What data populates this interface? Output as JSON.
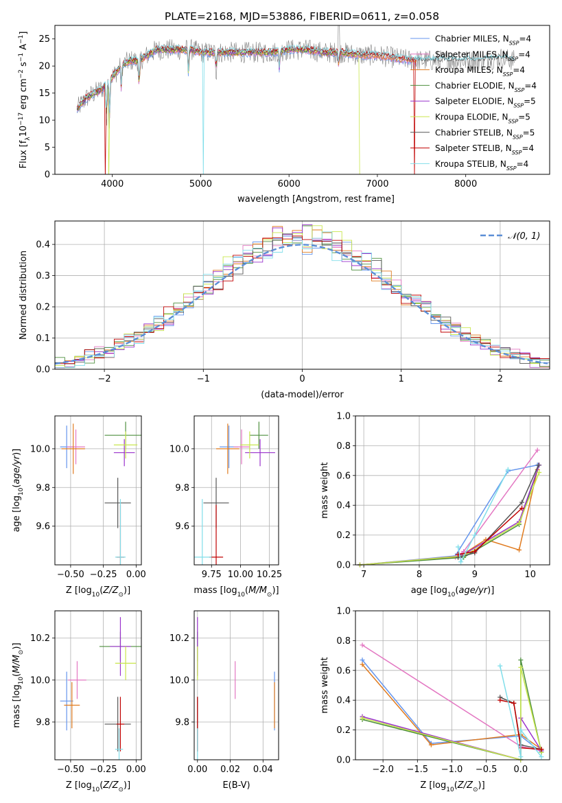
{
  "figure_title": "PLATE=2168, MJD=53886, FIBERID=0611, z=0.058",
  "colors": {
    "Chabrier MILES": "#6495ED",
    "Salpeter MILES": "#E377C2",
    "Kroupa MILES": "#E07B1F",
    "Chabrier ELODIE": "#4E8F3E",
    "Salpeter ELODIE": "#9932CC",
    "Kroupa ELODIE": "#C8E64B",
    "Chabrier STELIB": "#555555",
    "Salpeter STELIB": "#C00000",
    "Kroupa STELIB": "#80DEEA"
  },
  "chart_data": [
    {
      "id": "spectrum",
      "type": "line",
      "xlabel": "wavelength [Angstrom, rest frame]",
      "ylabel": "Flux [f_λ10^{-17} erg cm^{-2} s^{-1} A^{-1}]",
      "xlim": [
        3350,
        8950
      ],
      "ylim": [
        0,
        27.5
      ],
      "xticks": [
        4000,
        5000,
        6000,
        7000,
        8000
      ],
      "yticks": [
        0,
        5,
        10,
        15,
        20,
        25
      ],
      "legend_position": "top-right",
      "data_color": "#808080",
      "data_label": "",
      "continuum": {
        "x": [
          3600,
          3700,
          3800,
          3900,
          4000,
          4100,
          4200,
          4300,
          4400,
          4500,
          4600,
          4700,
          4800,
          4900,
          5000,
          5200,
          5400,
          5600,
          5800,
          6000,
          6200,
          6400,
          6600,
          6800,
          7000,
          7200,
          7400,
          7600,
          7800,
          8000,
          8200,
          8400,
          8550
        ],
        "y": [
          12,
          14,
          15,
          16,
          18,
          20,
          21,
          21,
          22,
          23,
          23,
          23,
          23,
          23,
          22.5,
          22.5,
          22.5,
          22.5,
          22.5,
          23,
          23,
          22.5,
          22.5,
          22,
          22,
          21.5,
          21,
          21,
          21,
          21,
          21,
          21.5,
          21
        ]
      },
      "absorption_lines": [
        {
          "x": 3934,
          "depth": 8
        },
        {
          "x": 3968,
          "depth": 8
        },
        {
          "x": 4102,
          "depth": 5
        },
        {
          "x": 4304,
          "depth": 6
        },
        {
          "x": 4861,
          "depth": 5
        },
        {
          "x": 5175,
          "depth": 4
        },
        {
          "x": 5892,
          "depth": 4
        },
        {
          "x": 6563,
          "depth": 3
        }
      ],
      "model_gaps": [
        {
          "x": 3920,
          "model": "Salpeter STELIB"
        },
        {
          "x": 3960,
          "model": "Kroupa ELODIE"
        },
        {
          "x": 5030,
          "model": "Kroupa STELIB"
        },
        {
          "x": 6800,
          "model": "Kroupa ELODIE"
        },
        {
          "x": 7420,
          "model": "Salpeter STELIB"
        }
      ],
      "series": [
        {
          "name": "Chabrier MILES, N_SSP=4",
          "model": "Chabrier MILES",
          "xmin": 3600,
          "xmax": 7440
        },
        {
          "name": "Salpeter MILES, N_SSP=4",
          "model": "Salpeter MILES",
          "xmin": 3600,
          "xmax": 7440
        },
        {
          "name": "Kroupa MILES, N_SSP=4",
          "model": "Kroupa MILES",
          "xmin": 3600,
          "xmax": 7440
        },
        {
          "name": "Chabrier ELODIE, N_SSP=4",
          "model": "Chabrier ELODIE",
          "xmin": 3600,
          "xmax": 6800
        },
        {
          "name": "Salpeter ELODIE, N_SSP=5",
          "model": "Salpeter ELODIE",
          "xmin": 3600,
          "xmax": 6800
        },
        {
          "name": "Kroupa ELODIE, N_SSP=5",
          "model": "Kroupa ELODIE",
          "xmin": 3600,
          "xmax": 6800
        },
        {
          "name": "Chabrier STELIB, N_SSP=5",
          "model": "Chabrier STELIB",
          "xmin": 3600,
          "xmax": 8550
        },
        {
          "name": "Salpeter STELIB, N_SSP=4",
          "model": "Salpeter STELIB",
          "xmin": 3600,
          "xmax": 7440
        },
        {
          "name": "Kroupa STELIB, N_SSP=4",
          "model": "Kroupa STELIB",
          "xmin": 3600,
          "xmax": 8550
        }
      ]
    },
    {
      "id": "residuals",
      "type": "histogram",
      "xlabel": "(data-model)/error",
      "ylabel": "Normed distribution",
      "xlim": [
        -2.5,
        2.5
      ],
      "ylim": [
        0,
        0.475
      ],
      "xticks": [
        -2,
        -1,
        0,
        1,
        2
      ],
      "yticks": [
        0.0,
        0.1,
        0.2,
        0.3,
        0.4
      ],
      "grid": true,
      "bin_width": 0.1,
      "legend": "𝒩(0, 1)",
      "legend_position": "top-right",
      "reference_curve": {
        "type": "normal",
        "mu": 0,
        "sigma": 1,
        "color": "#5B8ED6"
      },
      "noise_amplitude": 0.045,
      "series_models": [
        "Chabrier MILES",
        "Salpeter MILES",
        "Kroupa MILES",
        "Chabrier ELODIE",
        "Salpeter ELODIE",
        "Kroupa ELODIE",
        "Chabrier STELIB",
        "Salpeter STELIB",
        "Kroupa STELIB"
      ]
    },
    {
      "id": "age-vs-Z",
      "type": "errorbar",
      "xlabel": "Z [log₁₀(Z/Z⊙)]",
      "ylabel": "age  [log₁₀(age/yr)]",
      "xlim": [
        -0.62,
        0.04
      ],
      "ylim": [
        9.4,
        10.17
      ],
      "xticks": [
        "-0.50",
        "-0.25",
        "0.00"
      ],
      "yticks": [
        "9.6",
        "9.8",
        "10.0"
      ],
      "grid": true,
      "points": [
        {
          "model": "Chabrier MILES",
          "x": -0.53,
          "xerr": 0.05,
          "y": 10.01,
          "yerr": 0.11
        },
        {
          "model": "Salpeter MILES",
          "x": -0.46,
          "xerr": 0.07,
          "y": 10.01,
          "yerr": 0.09
        },
        {
          "model": "Kroupa MILES",
          "x": -0.48,
          "xerr": 0.09,
          "y": 10.0,
          "yerr": 0.13
        },
        {
          "model": "Chabrier ELODIE",
          "x": -0.08,
          "xerr": 0.16,
          "y": 10.07,
          "yerr": 0.07
        },
        {
          "model": "Salpeter ELODIE",
          "x": -0.09,
          "xerr": 0.08,
          "y": 9.98,
          "yerr": 0.07
        },
        {
          "model": "Kroupa ELODIE",
          "x": -0.08,
          "xerr": 0.09,
          "y": 10.02,
          "yerr": 0.07
        },
        {
          "model": "Chabrier STELIB",
          "x": -0.14,
          "xerr": 0.1,
          "y": 9.72,
          "yerr": 0.13
        },
        {
          "model": "Salpeter STELIB",
          "x": -0.12,
          "xerr": 0.03,
          "y": 9.44,
          "yerr": 0.27
        },
        {
          "model": "Kroupa STELIB",
          "x": -0.12,
          "xerr": 0.04,
          "y": 9.44,
          "yerr": 0.3
        }
      ]
    },
    {
      "id": "age-vs-mass",
      "type": "errorbar",
      "xlabel": "mass [log₁₀(M/M⊙)]",
      "ylabel": "",
      "xlim": [
        9.6,
        10.33
      ],
      "ylim": [
        9.4,
        10.17
      ],
      "xticks": [
        "9.75",
        "10.00",
        "10.25"
      ],
      "yticks": [
        "9.6",
        "9.8",
        "10.0"
      ],
      "grid": true,
      "points": [
        {
          "model": "Chabrier MILES",
          "x": 9.9,
          "xerr": 0.08,
          "y": 10.01,
          "yerr": 0.11
        },
        {
          "model": "Salpeter MILES",
          "x": 10.01,
          "xerr": 0.07,
          "y": 10.01,
          "yerr": 0.09
        },
        {
          "model": "Kroupa MILES",
          "x": 9.89,
          "xerr": 0.1,
          "y": 10.0,
          "yerr": 0.13
        },
        {
          "model": "Chabrier ELODIE",
          "x": 10.16,
          "xerr": 0.08,
          "y": 10.07,
          "yerr": 0.07
        },
        {
          "model": "Salpeter ELODIE",
          "x": 10.17,
          "xerr": 0.13,
          "y": 9.98,
          "yerr": 0.07
        },
        {
          "model": "Kroupa ELODIE",
          "x": 10.08,
          "xerr": 0.08,
          "y": 10.02,
          "yerr": 0.07
        },
        {
          "model": "Chabrier STELIB",
          "x": 9.79,
          "xerr": 0.11,
          "y": 9.72,
          "yerr": 0.13
        },
        {
          "model": "Salpeter STELIB",
          "x": 9.79,
          "xerr": 0.06,
          "y": 9.44,
          "yerr": 0.27
        },
        {
          "model": "Kroupa STELIB",
          "x": 9.67,
          "xerr": 0.08,
          "y": 9.44,
          "yerr": 0.3
        }
      ]
    },
    {
      "id": "massweight-vs-age",
      "type": "line",
      "xlabel": "age  [log₁₀(age/yr)]",
      "ylabel": "mass weight",
      "xlim": [
        6.85,
        10.35
      ],
      "ylim": [
        0,
        1.0
      ],
      "xticks": [
        "7",
        "8",
        "9",
        "10"
      ],
      "yticks": [
        "0.0",
        "0.2",
        "0.4",
        "0.6",
        "0.8",
        "1.0"
      ],
      "grid": true,
      "series": [
        {
          "model": "Chabrier MILES",
          "x": [
            6.93,
            8.65,
            9.6,
            10.13
          ],
          "y": [
            0.0,
            0.06,
            0.63,
            0.67
          ]
        },
        {
          "model": "Salpeter MILES",
          "x": [
            6.93,
            8.65,
            8.8,
            10.13
          ],
          "y": [
            0.0,
            0.05,
            0.09,
            0.77
          ]
        },
        {
          "model": "Kroupa MILES",
          "x": [
            6.93,
            8.7,
            9.2,
            9.8,
            10.13
          ],
          "y": [
            0.0,
            0.05,
            0.17,
            0.1,
            0.64
          ]
        },
        {
          "model": "Chabrier ELODIE",
          "x": [
            6.93,
            8.8,
            9.8,
            10.16
          ],
          "y": [
            0.0,
            0.05,
            0.27,
            0.67
          ]
        },
        {
          "model": "Salpeter ELODIE",
          "x": [
            6.93,
            8.75,
            9.8,
            10.16
          ],
          "y": [
            0.0,
            0.06,
            0.29,
            0.67
          ]
        },
        {
          "model": "Kroupa ELODIE",
          "x": [
            6.93,
            8.8,
            9.8,
            10.16
          ],
          "y": [
            0.0,
            0.06,
            0.28,
            0.62
          ]
        },
        {
          "model": "Chabrier STELIB",
          "x": [
            8.7,
            9.0,
            9.85,
            10.15
          ],
          "y": [
            0.05,
            0.08,
            0.42,
            0.67
          ]
        },
        {
          "model": "Salpeter STELIB",
          "x": [
            8.7,
            9.0,
            9.85
          ],
          "y": [
            0.07,
            0.09,
            0.38
          ]
        },
        {
          "model": "Kroupa STELIB",
          "x": [
            8.7,
            8.75,
            9.0,
            9.6
          ],
          "y": [
            0.12,
            0.02,
            0.2,
            0.64
          ]
        }
      ]
    },
    {
      "id": "mass-vs-Z",
      "type": "errorbar",
      "xlabel": "Z [log₁₀(Z/Z⊙)]",
      "ylabel": "mass [log₁₀(M/M⊙)]",
      "xlim": [
        -0.62,
        0.04
      ],
      "ylim": [
        9.62,
        10.33
      ],
      "xticks": [
        "-0.50",
        "-0.25",
        "0.00"
      ],
      "yticks": [
        "9.8",
        "10.0",
        "10.2"
      ],
      "grid": true,
      "points": [
        {
          "model": "Chabrier MILES",
          "x": -0.53,
          "xerr": 0.05,
          "y": 9.9,
          "yerr": 0.14
        },
        {
          "model": "Salpeter MILES",
          "x": -0.45,
          "xerr": 0.07,
          "y": 10.0,
          "yerr": 0.09
        },
        {
          "model": "Kroupa MILES",
          "x": -0.49,
          "xerr": 0.06,
          "y": 9.88,
          "yerr": 0.11
        },
        {
          "model": "Chabrier ELODIE",
          "x": -0.12,
          "xerr": 0.16,
          "y": 10.16,
          "yerr": 0.07
        },
        {
          "model": "Salpeter ELODIE",
          "x": -0.12,
          "xerr": 0.08,
          "y": 10.16,
          "yerr": 0.14
        },
        {
          "model": "Kroupa ELODIE",
          "x": -0.08,
          "xerr": 0.08,
          "y": 10.08,
          "yerr": 0.08
        },
        {
          "model": "Chabrier STELIB",
          "x": -0.14,
          "xerr": 0.1,
          "y": 9.79,
          "yerr": 0.13
        },
        {
          "model": "Salpeter STELIB",
          "x": -0.12,
          "xerr": 0.03,
          "y": 9.79,
          "yerr": 0.13
        },
        {
          "model": "Kroupa STELIB",
          "x": -0.13,
          "xerr": 0.03,
          "y": 9.67,
          "yerr": 0.1
        }
      ]
    },
    {
      "id": "mass-vs-EBV",
      "type": "errorbar",
      "xlabel": "E(B-V)",
      "ylabel": "",
      "xlim": [
        -0.002,
        0.0495
      ],
      "ylim": [
        9.62,
        10.33
      ],
      "xticks": [
        "0.00",
        "0.02",
        "0.04"
      ],
      "yticks": [
        "9.8",
        "10.0",
        "10.2"
      ],
      "grid": true,
      "points": [
        {
          "model": "Chabrier MILES",
          "x": 0.047,
          "xerr": 0.0,
          "y": 9.9,
          "yerr": 0.14
        },
        {
          "model": "Salpeter MILES",
          "x": 0.023,
          "xerr": 0.0,
          "y": 10.0,
          "yerr": 0.09
        },
        {
          "model": "Kroupa MILES",
          "x": 0.047,
          "xerr": 0.0,
          "y": 9.88,
          "yerr": 0.11
        },
        {
          "model": "Chabrier ELODIE",
          "x": 0.0,
          "xerr": 0.0,
          "y": 10.16,
          "yerr": 0.07
        },
        {
          "model": "Salpeter ELODIE",
          "x": 0.0,
          "xerr": 0.0,
          "y": 10.16,
          "yerr": 0.14
        },
        {
          "model": "Kroupa ELODIE",
          "x": 0.0,
          "xerr": 0.0,
          "y": 10.08,
          "yerr": 0.08
        },
        {
          "model": "Chabrier STELIB",
          "x": 0.0,
          "xerr": 0.0,
          "y": 9.79,
          "yerr": 0.13
        },
        {
          "model": "Salpeter STELIB",
          "x": 0.0,
          "xerr": 0.0,
          "y": 9.79,
          "yerr": 0.13
        },
        {
          "model": "Kroupa STELIB",
          "x": 0.0,
          "xerr": 0.0,
          "y": 9.67,
          "yerr": 0.1
        }
      ]
    },
    {
      "id": "massweight-vs-Z",
      "type": "line",
      "xlabel": "Z [log₁₀(Z/Z⊙)]",
      "ylabel": "mass weight",
      "xlim": [
        -2.4,
        0.42
      ],
      "ylim": [
        0,
        1.0
      ],
      "xticks": [
        "−2.0",
        "−1.5",
        "−1.0",
        "−0.5",
        "0.0"
      ],
      "ytick_labels": [
        "0.0",
        "0.2",
        "0.4",
        "0.6",
        "0.8",
        "1.0"
      ],
      "xtick_values": [
        -2.0,
        -1.5,
        -1.0,
        -0.5,
        0.0
      ],
      "yticks": [
        0.0,
        0.2,
        0.4,
        0.6,
        0.8,
        1.0
      ],
      "grid": true,
      "series": [
        {
          "model": "Chabrier MILES",
          "x": [
            -2.3,
            -1.3,
            0.0,
            0.3
          ],
          "y": [
            0.67,
            0.11,
            0.16,
            0.05
          ]
        },
        {
          "model": "Salpeter MILES",
          "x": [
            -2.3,
            0.0,
            0.3
          ],
          "y": [
            0.77,
            0.09,
            0.06
          ]
        },
        {
          "model": "Kroupa MILES",
          "x": [
            -2.3,
            -1.3,
            0.0,
            0.3
          ],
          "y": [
            0.64,
            0.1,
            0.17,
            0.07
          ]
        },
        {
          "model": "Chabrier ELODIE",
          "x": [
            -2.3,
            0.0,
            0.0,
            0.3
          ],
          "y": [
            0.27,
            0.0,
            0.67,
            0.05
          ]
        },
        {
          "model": "Salpeter ELODIE",
          "x": [
            -2.3,
            0.0,
            0.0,
            0.3
          ],
          "y": [
            0.29,
            0.0,
            0.28,
            0.06
          ]
        },
        {
          "model": "Kroupa ELODIE",
          "x": [
            -2.3,
            0.0,
            0.0,
            0.3
          ],
          "y": [
            0.28,
            0.0,
            0.62,
            0.05
          ]
        },
        {
          "model": "Chabrier STELIB",
          "x": [
            -0.3,
            -0.1,
            0.0,
            0.3
          ],
          "y": [
            0.42,
            0.38,
            0.1,
            0.07
          ]
        },
        {
          "model": "Salpeter STELIB",
          "x": [
            -0.3,
            -0.1,
            0.0,
            0.3
          ],
          "y": [
            0.4,
            0.38,
            0.08,
            0.07
          ]
        },
        {
          "model": "Kroupa STELIB",
          "x": [
            -0.3,
            0.0,
            0.0,
            0.3
          ],
          "y": [
            0.63,
            0.02,
            0.2,
            0.02
          ]
        }
      ]
    }
  ]
}
